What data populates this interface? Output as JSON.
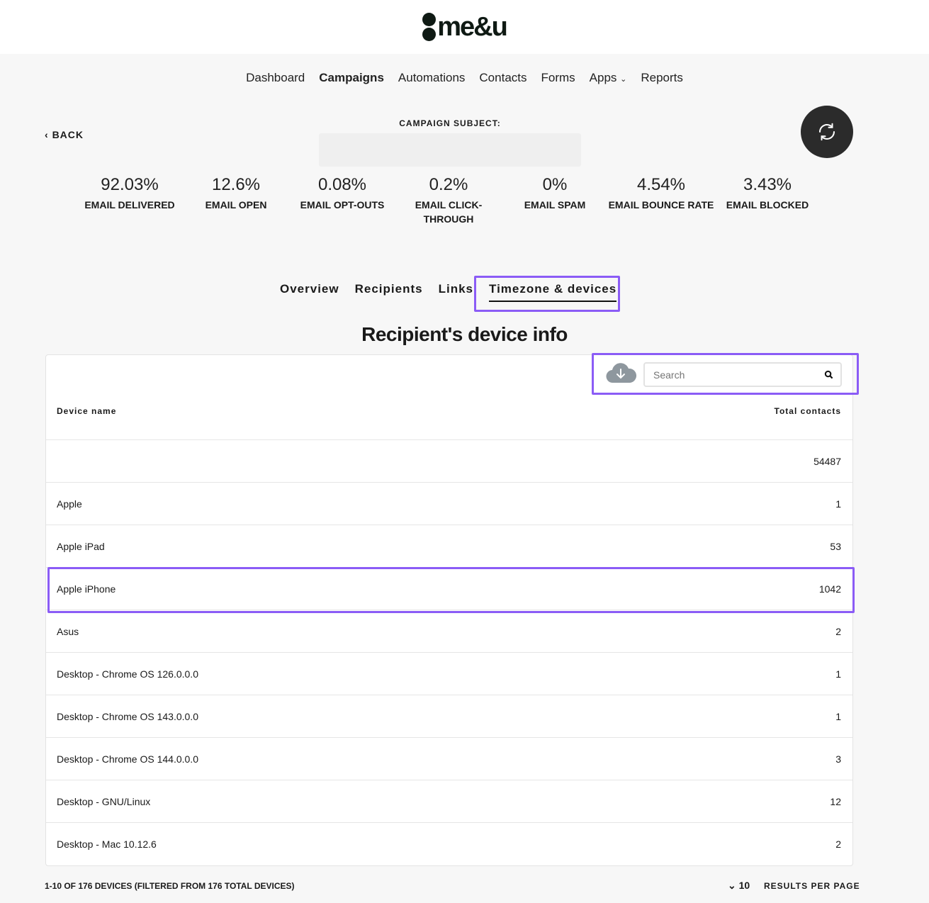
{
  "logo": "me&u",
  "nav": [
    "Dashboard",
    "Campaigns",
    "Automations",
    "Contacts",
    "Forms",
    "Apps",
    "Reports"
  ],
  "nav_active": "Campaigns",
  "back": "BACK",
  "subject_label": "CAMPAIGN SUBJECT:",
  "subject_value": "",
  "stats": [
    {
      "value": "92.03%",
      "label": "EMAIL DELIVERED"
    },
    {
      "value": "12.6%",
      "label": "EMAIL OPEN"
    },
    {
      "value": "0.08%",
      "label": "EMAIL OPT-OUTS"
    },
    {
      "value": "0.2%",
      "label": "EMAIL CLICK-THROUGH"
    },
    {
      "value": "0%",
      "label": "EMAIL SPAM"
    },
    {
      "value": "4.54%",
      "label": "EMAIL BOUNCE RATE"
    },
    {
      "value": "3.43%",
      "label": "EMAIL BLOCKED"
    }
  ],
  "tabs": [
    "Overview",
    "Recipients",
    "Links",
    "Timezone & devices"
  ],
  "active_tab": "Timezone & devices",
  "heading": "Recipient's device info",
  "search": {
    "placeholder": "Search",
    "value": ""
  },
  "columns": [
    "Device name",
    "Total contacts"
  ],
  "rows": [
    {
      "name": "",
      "count": "54487"
    },
    {
      "name": "Apple",
      "count": "1"
    },
    {
      "name": "Apple iPad",
      "count": "53"
    },
    {
      "name": "Apple iPhone",
      "count": "1042"
    },
    {
      "name": "Asus",
      "count": "2"
    },
    {
      "name": "Desktop - Chrome OS 126.0.0.0",
      "count": "1"
    },
    {
      "name": "Desktop - Chrome OS 143.0.0.0",
      "count": "1"
    },
    {
      "name": "Desktop - Chrome OS 144.0.0.0",
      "count": "3"
    },
    {
      "name": "Desktop - GNU/Linux",
      "count": "12"
    },
    {
      "name": "Desktop - Mac 10.12.6",
      "count": "2"
    }
  ],
  "footer": {
    "summary": "1-10 OF 176 DEVICES  (FILTERED FROM 176 TOTAL DEVICES)",
    "per_page": "10",
    "per_page_label": "RESULTS PER PAGE"
  },
  "colors": {
    "highlight": "#8b5cf6",
    "brand": "#0f1a14"
  }
}
